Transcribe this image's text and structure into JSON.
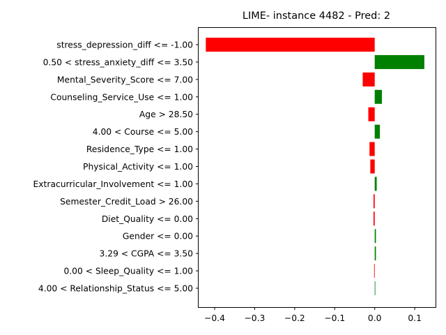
{
  "chart_data": {
    "type": "bar",
    "orientation": "horizontal",
    "title": "LIME- instance 4482 - Pred: 2",
    "xlabel": "",
    "ylabel": "",
    "xlim": [
      -0.44,
      0.152
    ],
    "xticks": [
      -0.4,
      -0.3,
      -0.2,
      -0.1,
      0.0,
      0.1
    ],
    "xtick_labels": [
      "−0.4",
      "−0.3",
      "−0.2",
      "−0.1",
      "0.0",
      "0.1"
    ],
    "grid": false,
    "colors": {
      "positive": "#008000",
      "negative": "#ff0000"
    },
    "categories": [
      "stress_depression_diff <= -1.00",
      "0.50 < stress_anxiety_diff <= 3.50",
      "Mental_Severity_Score <= 7.00",
      "Counseling_Service_Use <= 1.00",
      "Age > 28.50",
      "4.00 < Course <= 5.00",
      "Residence_Type <= 1.00",
      "Physical_Activity <= 1.00",
      "Extracurricular_Involvement <= 1.00",
      "Semester_Credit_Load > 26.00",
      "Diet_Quality <= 0.00",
      "Gender <= 0.00",
      "3.29 < CGPA <= 3.50",
      "0.00 < Sleep_Quality <= 1.00",
      "4.00 < Relationship_Status <= 5.00"
    ],
    "values": [
      -0.422,
      0.124,
      -0.03,
      0.018,
      -0.016,
      0.013,
      -0.013,
      -0.011,
      0.005,
      -0.003,
      -0.003,
      0.003,
      0.003,
      -0.0015,
      0.0015
    ]
  }
}
